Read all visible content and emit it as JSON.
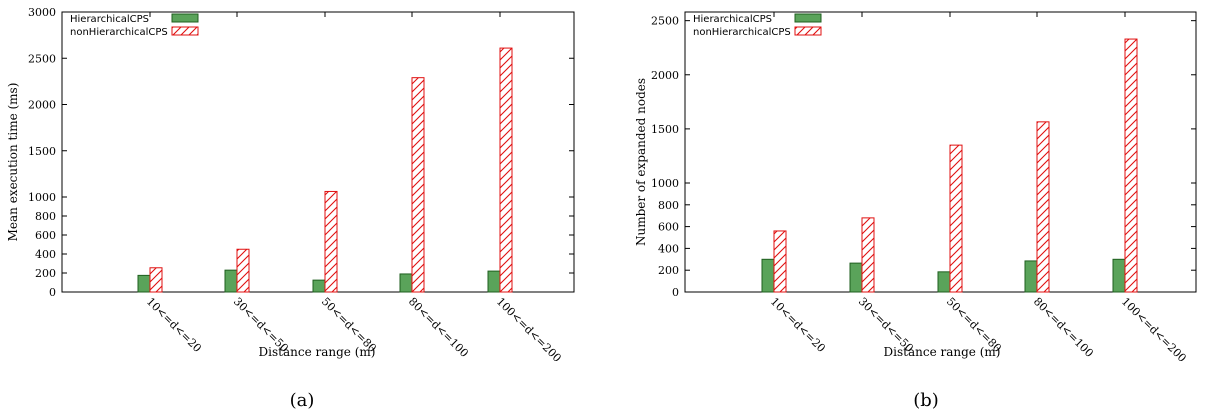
{
  "chart_data": [
    {
      "type": "bar",
      "caption": "(a)",
      "xlabel": "Distance range (m)",
      "ylabel": "Mean execution time (ms)",
      "categories": [
        "10<=d<=20",
        "30<=d<=50",
        "50<=d<=80",
        "80<=d<=100",
        "100<=d<=200"
      ],
      "series": [
        {
          "name": "HierarchicalCPS",
          "values": [
            175,
            230,
            125,
            190,
            220
          ]
        },
        {
          "name": "nonHierarchicalCPS",
          "values": [
            255,
            450,
            1060,
            2290,
            2610
          ]
        }
      ],
      "y_axis": {
        "scale": "broken: linear 0-1000 (step 200) then compressed linear 1000-3000 (step 500)",
        "break_value": 1000,
        "max": 3000,
        "ticks": [
          0,
          200,
          400,
          600,
          800,
          1000,
          1500,
          2000,
          2500,
          3000
        ]
      },
      "legend": "top-left",
      "grid": false
    },
    {
      "type": "bar",
      "caption": "(b)",
      "xlabel": "Distance range (m)",
      "ylabel": "Number of expanded nodes",
      "categories": [
        "10<=d<=20",
        "30<=d<=50",
        "50<=d<=80",
        "80<=d<=100",
        "100<=d<=200"
      ],
      "series": [
        {
          "name": "HierarchicalCPS",
          "values": [
            300,
            265,
            185,
            285,
            300
          ]
        },
        {
          "name": "nonHierarchicalCPS",
          "values": [
            560,
            680,
            1350,
            1565,
            2330
          ]
        }
      ],
      "y_axis": {
        "scale": "broken: linear 0-1000 (step 200) then compressed linear 1000-2500 (step 500)",
        "break_value": 1000,
        "max": 2580,
        "ticks": [
          0,
          200,
          400,
          600,
          800,
          1000,
          1500,
          2000,
          2500
        ]
      },
      "legend": "top-left",
      "grid": false
    }
  ],
  "colors": {
    "hierarchical_fill": "#5aa35a",
    "hierarchical_stroke": "#1f5f1f",
    "non_hierarchical_stroke": "#e01010"
  }
}
